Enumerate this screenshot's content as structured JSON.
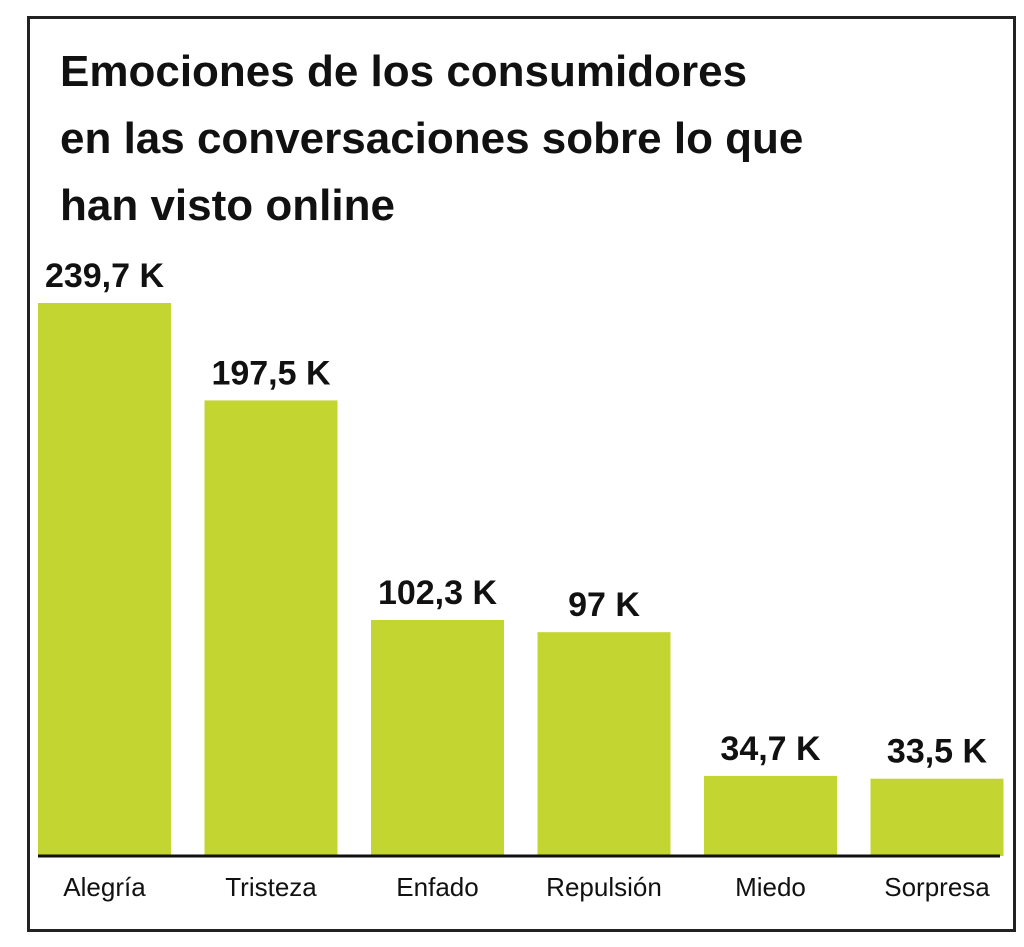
{
  "chart_data": {
    "type": "bar",
    "title_lines": [
      "Emociones de los consumidores",
      "en las conversaciones sobre lo que",
      "han visto online"
    ],
    "categories": [
      "Alegría",
      "Tristeza",
      "Enfado",
      "Repulsión",
      "Miedo",
      "Sorpresa"
    ],
    "values": [
      239.7,
      197.5,
      102.3,
      97,
      34.7,
      33.5
    ],
    "value_labels": [
      "239,7 K",
      "197,5 K",
      "102,3 K",
      "97 K",
      "34,7 K",
      "33,5 K"
    ],
    "unit": "K",
    "xlabel": "",
    "ylabel": "",
    "ylim": [
      0,
      239.7
    ],
    "grid": false,
    "legend": "none"
  },
  "colors": {
    "bar": "#c2d530",
    "axis": "#111111",
    "text": "#111111",
    "border": "#222222"
  }
}
